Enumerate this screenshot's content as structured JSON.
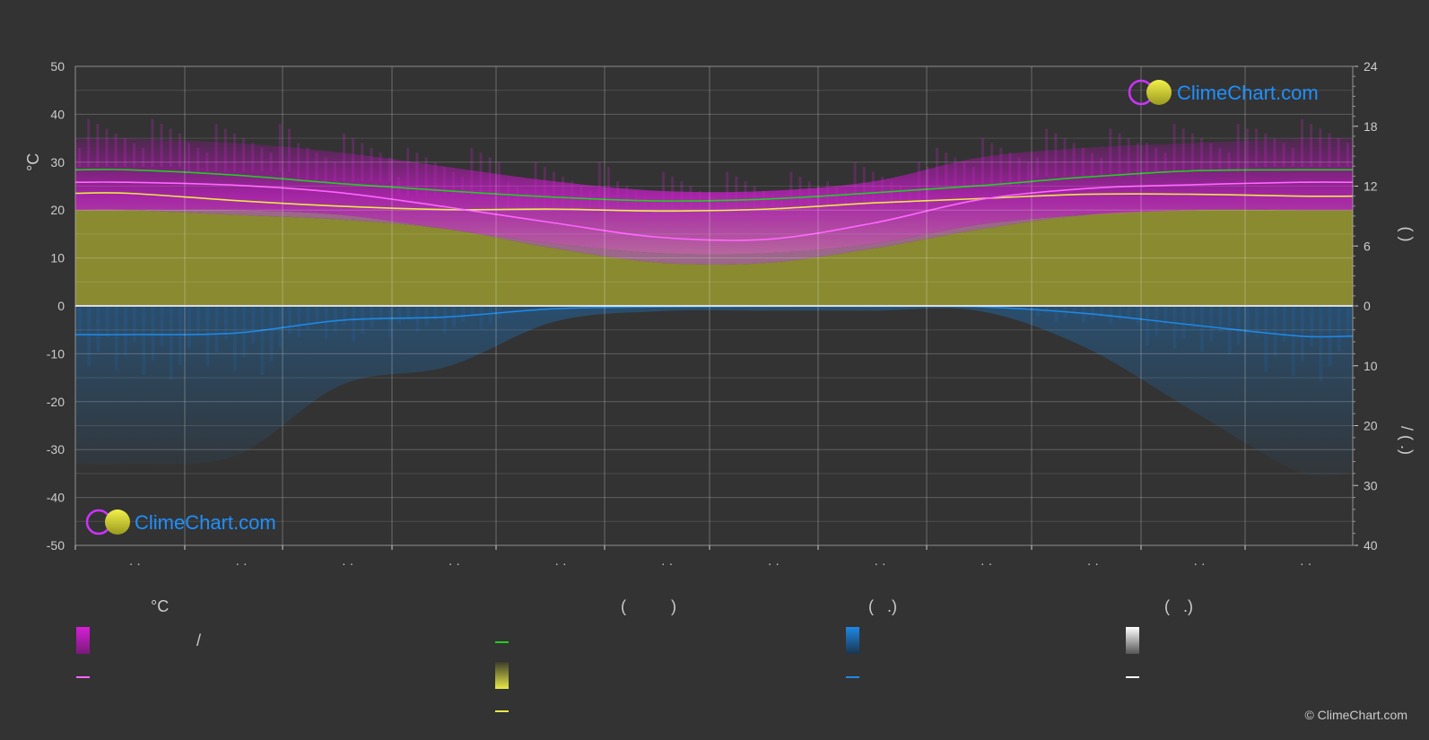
{
  "chart_data": {
    "type": "area",
    "left_axis": {
      "label": "°C",
      "ticks": [
        "50",
        "40",
        "30",
        "20",
        "10",
        "0",
        "-10",
        "-20",
        "-30",
        "-40",
        "-50"
      ],
      "ylim": [
        -50,
        50
      ]
    },
    "right_axis_top": {
      "ticks": [
        "24",
        "18",
        "12",
        "6",
        "0"
      ],
      "ylim": [
        0,
        24
      ]
    },
    "right_axis_bottom": {
      "ticks": [
        "0",
        "10",
        "20",
        "30",
        "40"
      ],
      "ylim": [
        0,
        40
      ]
    },
    "right_axis_label_top": "(  )",
    "right_axis_label_bottom": "/  (  .)",
    "x_tick_labels": [
      "· ·",
      "· ·",
      "· ·",
      "· ·",
      "· ·",
      "· ·",
      "· ·",
      "· ·",
      "· ·",
      "· ·",
      "· ·",
      "· ·"
    ],
    "grid": true,
    "series": [
      {
        "key": "daylight",
        "color": "#22cc22",
        "values": [
          28.4,
          27.3,
          25.5,
          24.0,
          22.7,
          21.9,
          22.3,
          23.6,
          25.1,
          26.9,
          28.2,
          28.4
        ]
      },
      {
        "key": "sunshine",
        "color": "#e8e84a",
        "values": [
          23.5,
          22.0,
          20.8,
          20.1,
          20.2,
          19.8,
          20.2,
          21.5,
          22.4,
          23.3,
          23.3,
          22.9
        ]
      },
      {
        "key": "temp_mean",
        "color": "#ff66ff",
        "values": [
          25.8,
          25.2,
          23.6,
          20.6,
          17.3,
          14.3,
          13.9,
          17.3,
          22.2,
          24.5,
          25.3,
          25.8
        ]
      },
      {
        "key": "precip",
        "color": "#1e88e5",
        "values": [
          -6.0,
          -5.7,
          -3.0,
          -2.3,
          -0.6,
          -0.2,
          -0.1,
          -0.1,
          -0.2,
          -1.6,
          -4.0,
          -6.3
        ]
      }
    ],
    "temp_band": {
      "max": [
        35,
        34,
        32,
        29,
        26,
        24,
        24,
        26,
        31,
        33,
        34,
        35
      ],
      "min": [
        20,
        20,
        19,
        16,
        13,
        11,
        11,
        13,
        17,
        19,
        20,
        20
      ]
    },
    "sunshine_fill_top": [
      20,
      19,
      18,
      16,
      12,
      9,
      9,
      12,
      16,
      19,
      20,
      20
    ]
  },
  "logos": {
    "top_text": "ClimeChart.com",
    "bottom_text": "ClimeChart.com"
  },
  "legend": {
    "col1": {
      "head": "°C",
      "item1": "/"
    },
    "col2": {
      "head": "(          )"
    },
    "col3": {
      "head": "(   .)"
    },
    "col4": {
      "head": "(   .)"
    }
  },
  "copyright": "© ClimeChart.com"
}
